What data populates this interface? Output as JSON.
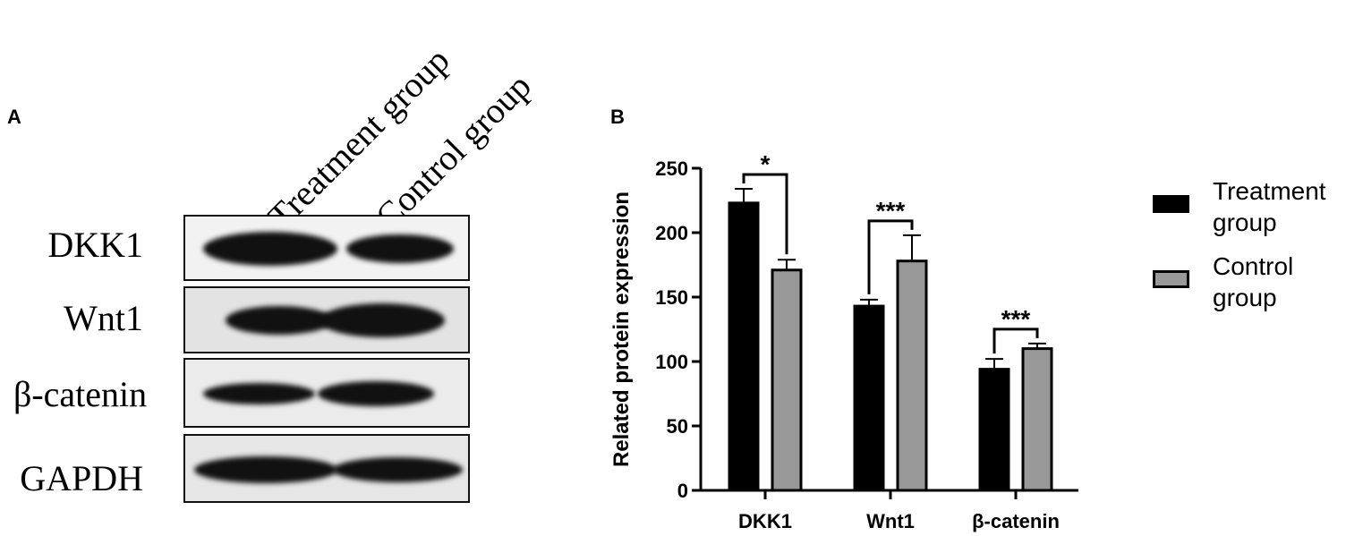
{
  "panel_a": {
    "letter": "A",
    "lanes": [
      "Treatment group",
      "Control group"
    ],
    "proteins": [
      "DKK1",
      "Wnt1",
      "β-catenin",
      "GAPDH"
    ]
  },
  "panel_b": {
    "letter": "B"
  },
  "chart_data": {
    "type": "bar",
    "categories": [
      "DKK1",
      "Wnt1",
      "β-catenin"
    ],
    "series": [
      {
        "name": "Treatment group",
        "legend_lines": [
          "Treatment",
          "group"
        ],
        "color": "#000000",
        "values": [
          223,
          143,
          94
        ],
        "errors": [
          11,
          5,
          8
        ]
      },
      {
        "name": "Control group",
        "legend_lines": [
          "Control",
          "group"
        ],
        "color": "#999999",
        "values": [
          171,
          178,
          110
        ],
        "errors": [
          8,
          20,
          4
        ]
      }
    ],
    "ylabel": "Related protein expression",
    "xlabel": "",
    "ylim": [
      0,
      250
    ],
    "yticks": [
      0,
      50,
      100,
      150,
      200,
      250
    ],
    "significance": [
      {
        "category": "DKK1",
        "label": "*"
      },
      {
        "category": "Wnt1",
        "label": "***"
      },
      {
        "category": "β-catenin",
        "label": "***"
      }
    ],
    "legend_position": "right",
    "grid": false
  }
}
